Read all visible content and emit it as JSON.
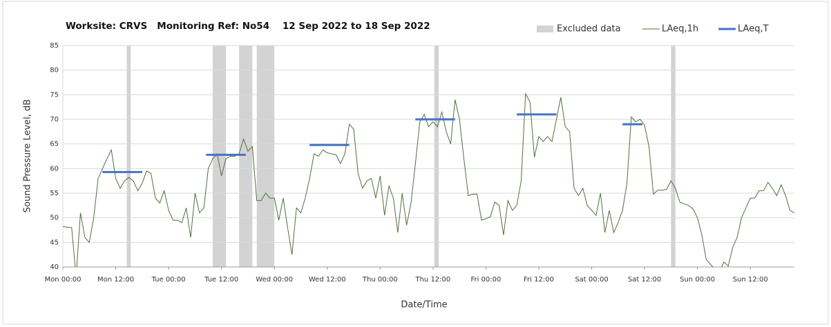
{
  "chart_data": {
    "type": "line",
    "title": "Worksite: CRVS   Monitoring Ref: No54    12 Sep 2022 to 18 Sep 2022",
    "x_label": "Date/Time",
    "y_label": "Sound Pressure Level, dB",
    "xlim": [
      0,
      166
    ],
    "ylim": [
      40,
      85
    ],
    "yticks": [
      40,
      45,
      50,
      55,
      60,
      65,
      70,
      75,
      80,
      85
    ],
    "xticks": [
      {
        "value": 0,
        "label": "Mon 00:00"
      },
      {
        "value": 12,
        "label": "Mon 12:00"
      },
      {
        "value": 24,
        "label": "Tue 00:00"
      },
      {
        "value": 36,
        "label": "Tue 12:00"
      },
      {
        "value": 48,
        "label": "Wed 00:00"
      },
      {
        "value": 60,
        "label": "Wed 12:00"
      },
      {
        "value": 72,
        "label": "Thu 00:00"
      },
      {
        "value": 84,
        "label": "Thu 12:00"
      },
      {
        "value": 96,
        "label": "Fri 00:00"
      },
      {
        "value": 108,
        "label": "Fri 12:00"
      },
      {
        "value": 120,
        "label": "Sat 00:00"
      },
      {
        "value": 132,
        "label": "Sat 12:00"
      },
      {
        "value": 144,
        "label": "Sun 00:00"
      },
      {
        "value": 156,
        "label": "Sun 12:00"
      }
    ],
    "grid": true,
    "excluded": {
      "name": "Excluded data",
      "color": "#d3d3d3",
      "ranges": [
        [
          14.5,
          15.4
        ],
        [
          34,
          37
        ],
        [
          40,
          43
        ],
        [
          44,
          48
        ],
        [
          84.3,
          85.3
        ],
        [
          138,
          139
        ]
      ]
    },
    "x": [
      0,
      1,
      2,
      3,
      4,
      5,
      6,
      7,
      8,
      9,
      10,
      11,
      12,
      13,
      14,
      15,
      16,
      17,
      18,
      19,
      20,
      21,
      22,
      23,
      24,
      25,
      26,
      27,
      28,
      29,
      30,
      31,
      32,
      33,
      34,
      35,
      36,
      37,
      38,
      39,
      40,
      41,
      42,
      43,
      44,
      45,
      46,
      47,
      48,
      49,
      50,
      51,
      52,
      53,
      54,
      55,
      56,
      57,
      58,
      59,
      60,
      61,
      62,
      63,
      64,
      65,
      66,
      67,
      68,
      69,
      70,
      71,
      72,
      73,
      74,
      75,
      76,
      77,
      78,
      79,
      80,
      81,
      82,
      83,
      84,
      85,
      86,
      87,
      88,
      89,
      90,
      91,
      92,
      93,
      94,
      95,
      96,
      97,
      98,
      99,
      100,
      101,
      102,
      103,
      104,
      105,
      106,
      107,
      108,
      109,
      110,
      111,
      112,
      113,
      114,
      115,
      116,
      117,
      118,
      119,
      120,
      121,
      122,
      123,
      124,
      125,
      126,
      127,
      128,
      129,
      130,
      131,
      132,
      133,
      134,
      135,
      136,
      137,
      138,
      139,
      140,
      141,
      142,
      143,
      144,
      145,
      146,
      147,
      148,
      149,
      150,
      151,
      152,
      153,
      154,
      155,
      156,
      157,
      158,
      159,
      160,
      161,
      162,
      163,
      164,
      165,
      166
    ],
    "series": [
      {
        "name": "LAeq,1h",
        "color": "#4f6f3a",
        "values": [
          48.2,
          48.1,
          48,
          38,
          51,
          46,
          45,
          50,
          58,
          60,
          62,
          63.8,
          58,
          56,
          57.5,
          58.2,
          57.5,
          55.5,
          57,
          59.5,
          59,
          54,
          53,
          55.5,
          51.5,
          49.5,
          49.5,
          49,
          52,
          46,
          55,
          51,
          52,
          60,
          62,
          63,
          58.5,
          62,
          62.5,
          62.5,
          63,
          66,
          63.5,
          64.5,
          53.5,
          53.5,
          55,
          54,
          54,
          49.5,
          54,
          48,
          42.5,
          52,
          51,
          54,
          58,
          63,
          62.5,
          63.8,
          63.2,
          63,
          62.8,
          61,
          63,
          69,
          68,
          59,
          56,
          57.5,
          58,
          54,
          58.5,
          50.5,
          56.5,
          54,
          47,
          55,
          48.5,
          53,
          61,
          69.5,
          71,
          68.5,
          69.5,
          68.5,
          71.5,
          67.5,
          65,
          74,
          70,
          62,
          54.5,
          54.8,
          54.8,
          49.5,
          49.8,
          50.2,
          53.2,
          52.5,
          46.5,
          53.5,
          51.5,
          52.5,
          57.5,
          75.2,
          73.5,
          62.3,
          66.5,
          65.5,
          66.5,
          65.5,
          70,
          74.5,
          68.5,
          67.5,
          56,
          54.5,
          56,
          52.5,
          51.5,
          50.5,
          55,
          47,
          51.5,
          47,
          49,
          51.5,
          57,
          70.5,
          69.5,
          70,
          68.8,
          64.5,
          54.8,
          55.6,
          55.6,
          55.8,
          57.5,
          56,
          53.2,
          52.8,
          52.5,
          51.8,
          50,
          46.5,
          41.5,
          40.5,
          39.5,
          39,
          41,
          40.2,
          44,
          46,
          50,
          52,
          54,
          54,
          55.5,
          55.5,
          57.2,
          56,
          54.5,
          56.7,
          54.5,
          51.5,
          51
        ]
      }
    ],
    "period_levels": {
      "name": "LAeq,T",
      "color": "#4472c4",
      "segments": [
        {
          "start": 9,
          "end": 18,
          "value": 59.3
        },
        {
          "start": 32.5,
          "end": 41.5,
          "value": 62.8
        },
        {
          "start": 56,
          "end": 65,
          "value": 64.8
        },
        {
          "start": 80,
          "end": 89,
          "value": 70
        },
        {
          "start": 103,
          "end": 112,
          "value": 71
        },
        {
          "start": 127,
          "end": 131.5,
          "value": 69
        }
      ]
    }
  }
}
